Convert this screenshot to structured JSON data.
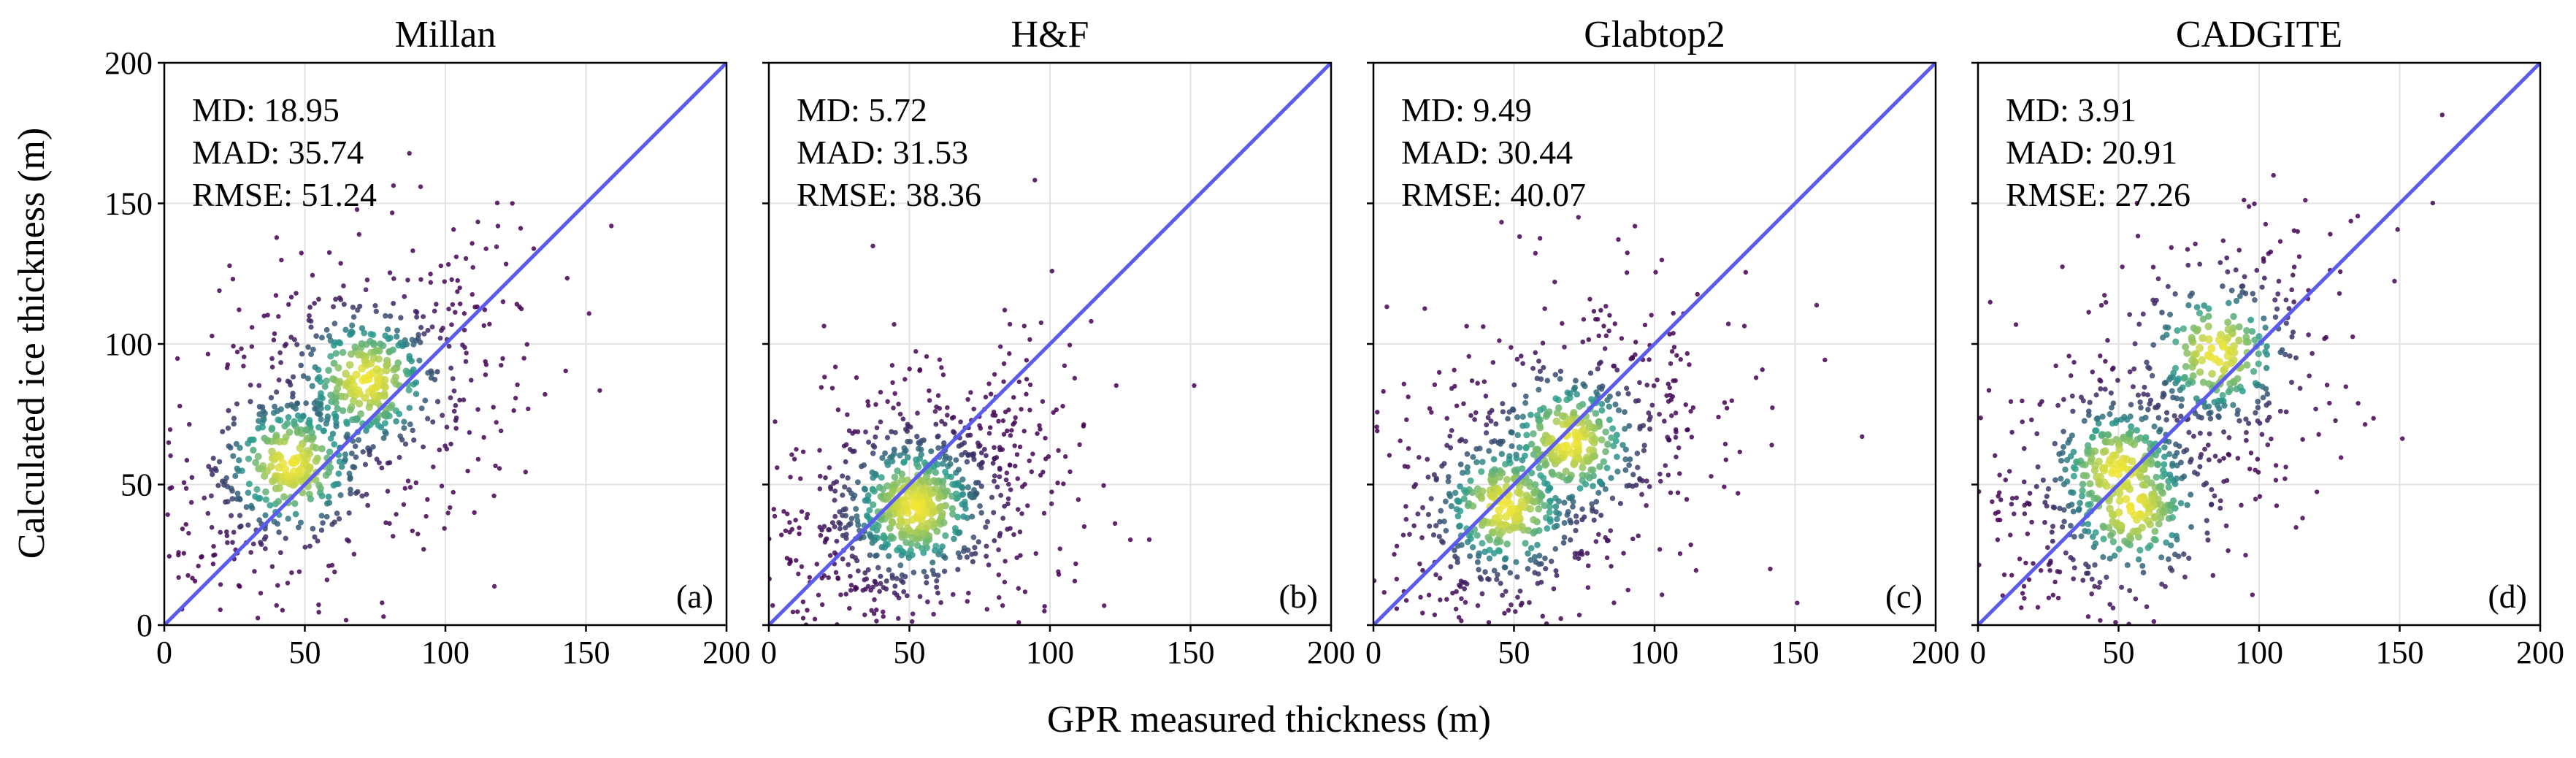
{
  "figure": {
    "xlabel": "GPR measured thickness (m)",
    "ylabel": "Calculated ice thickness (m)"
  },
  "chart_data": [
    {
      "type": "scatter",
      "title": "Millan",
      "panel_label": "(a)",
      "stats": [
        "MD: 18.95",
        "MAD: 35.74",
        "RMSE: 51.24"
      ],
      "xlim": [
        0,
        200
      ],
      "ylim": [
        0,
        200
      ],
      "xticks": [
        0,
        50,
        100,
        150,
        200
      ],
      "yticks": [
        0,
        50,
        100,
        150,
        200
      ],
      "grid": true,
      "reference_line": "1:1",
      "density_peaks": [
        {
          "x": 45,
          "y": 57
        },
        {
          "x": 72,
          "y": 87
        }
      ]
    },
    {
      "type": "scatter",
      "title": "H&F",
      "panel_label": "(b)",
      "stats": [
        "MD: 5.72",
        "MAD: 31.53",
        "RMSE: 38.36"
      ],
      "xlim": [
        0,
        200
      ],
      "ylim": [
        0,
        200
      ],
      "xticks": [
        0,
        50,
        100,
        150,
        200
      ],
      "yticks": [
        0,
        50,
        100,
        150,
        200
      ],
      "grid": true,
      "reference_line": "1:1",
      "density_peaks": [
        {
          "x": 52,
          "y": 42
        }
      ]
    },
    {
      "type": "scatter",
      "title": "Glabtop2",
      "panel_label": "(c)",
      "stats": [
        "MD: 9.49",
        "MAD: 30.44",
        "RMSE: 40.07"
      ],
      "xlim": [
        0,
        200
      ],
      "ylim": [
        0,
        200
      ],
      "xticks": [
        0,
        50,
        100,
        150,
        200
      ],
      "yticks": [
        0,
        50,
        100,
        150,
        200
      ],
      "grid": true,
      "reference_line": "1:1",
      "density_peaks": [
        {
          "x": 47,
          "y": 42
        },
        {
          "x": 70,
          "y": 65
        }
      ]
    },
    {
      "type": "scatter",
      "title": "CADGITE",
      "panel_label": "(d)",
      "stats": [
        "MD: 3.91",
        "MAD: 20.91",
        "RMSE: 27.26"
      ],
      "xlim": [
        0,
        200
      ],
      "ylim": [
        0,
        200
      ],
      "xticks": [
        0,
        50,
        100,
        150,
        200
      ],
      "yticks": [
        0,
        50,
        100,
        150,
        200
      ],
      "grid": true,
      "reference_line": "1:1",
      "density_peaks": [
        {
          "x": 50,
          "y": 55
        },
        {
          "x": 55,
          "y": 42
        },
        {
          "x": 85,
          "y": 97
        }
      ]
    }
  ],
  "colors": {
    "reference_line": "#5b5bf0",
    "density_low": "#440154",
    "density_mid": "#2a9d8f",
    "density_high": "#f2e635",
    "grid": "#e3e3e3"
  }
}
